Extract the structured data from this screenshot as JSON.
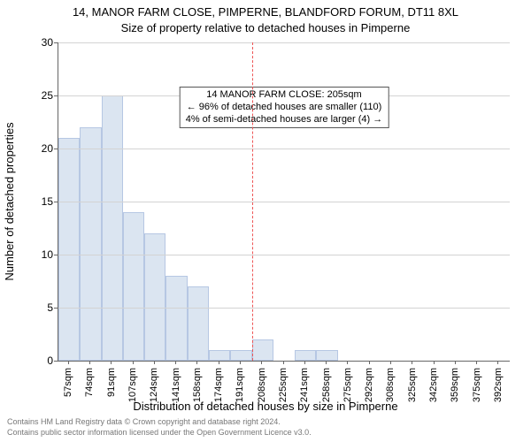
{
  "chart": {
    "type": "histogram",
    "main_title": "14, MANOR FARM CLOSE, PIMPERNE, BLANDFORD FORUM, DT11 8XL",
    "subtitle": "Size of property relative to detached houses in Pimperne",
    "y_axis_label": "Number of detached properties",
    "x_axis_label": "Distribution of detached houses by size in Pimperne",
    "ylim": [
      0,
      30
    ],
    "ytick_step": 5,
    "yticks": [
      0,
      5,
      10,
      15,
      20,
      25,
      30
    ],
    "xticks": [
      "57sqm",
      "74sqm",
      "91sqm",
      "107sqm",
      "124sqm",
      "141sqm",
      "158sqm",
      "174sqm",
      "191sqm",
      "208sqm",
      "225sqm",
      "241sqm",
      "258sqm",
      "275sqm",
      "292sqm",
      "308sqm",
      "325sqm",
      "342sqm",
      "359sqm",
      "375sqm",
      "392sqm"
    ],
    "values": [
      21,
      22,
      25,
      14,
      12,
      8,
      7,
      1,
      1,
      2,
      0,
      1,
      1,
      0,
      0,
      0,
      0,
      0,
      0,
      0,
      0
    ],
    "bar_color": "#dbe5f1",
    "bar_border_color": "#b6c7e3",
    "bar_width_ratio": 1.0,
    "grid_color": "#d3d3d3",
    "axis_color": "#666666",
    "background_color": "#ffffff",
    "marker_index_after": 9,
    "marker_color": "#e55",
    "annotation": {
      "line1": "14 MANOR FARM CLOSE: 205sqm",
      "line2": "← 96% of detached houses are smaller (110)",
      "line3": "4% of semi-detached houses are larger (4) →",
      "border_color": "#555555",
      "fontsize": 11
    },
    "title_fontsize": 13,
    "label_fontsize": 13,
    "tick_fontsize_y": 12,
    "tick_fontsize_x": 11
  },
  "footer": {
    "line1": "Contains HM Land Registry data © Crown copyright and database right 2024.",
    "line2": "Contains public sector information licensed under the Open Government Licence v3.0.",
    "color": "#777777",
    "fontsize": 9
  }
}
